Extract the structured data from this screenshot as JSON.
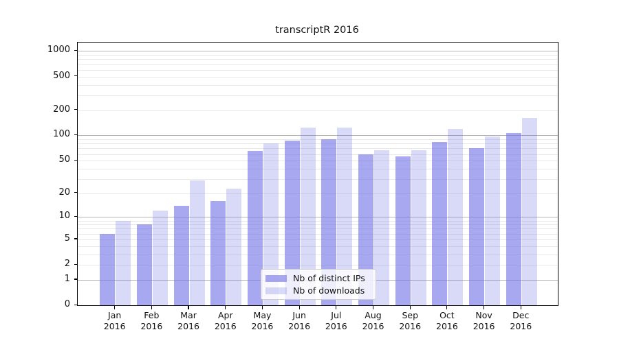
{
  "chart_data": {
    "type": "bar",
    "title": "transcriptR 2016",
    "categories": [
      "Jan",
      "Feb",
      "Mar",
      "Apr",
      "May",
      "Jun",
      "Jul",
      "Aug",
      "Sep",
      "Oct",
      "Nov",
      "Dec"
    ],
    "category_year": "2016",
    "series": [
      {
        "name": "Nb of distinct IPs",
        "color": "rgba(115,115,230,0.62)",
        "values": [
          6,
          8,
          14,
          16,
          65,
          86,
          90,
          59,
          56,
          84,
          70,
          107
        ]
      },
      {
        "name": "Nb of downloads",
        "color": "rgba(115,115,230,0.27)",
        "values": [
          9,
          12,
          29,
          23,
          80,
          125,
          123,
          66,
          66,
          120,
          97,
          160
        ]
      }
    ],
    "yscale": "log1p",
    "yticks": [
      0,
      1,
      2,
      5,
      10,
      20,
      50,
      100,
      200,
      500,
      1000
    ],
    "major_grid_values": [
      1,
      10,
      100,
      1000
    ],
    "ylim": [
      0,
      1260
    ],
    "grid": true,
    "legend_position": "lower-center",
    "xlabel": "",
    "ylabel": ""
  },
  "colors": {
    "axis": "#000000",
    "major_grid": "#b3b3b3",
    "minor_grid": "#e8e8e8",
    "text": "#111111"
  }
}
